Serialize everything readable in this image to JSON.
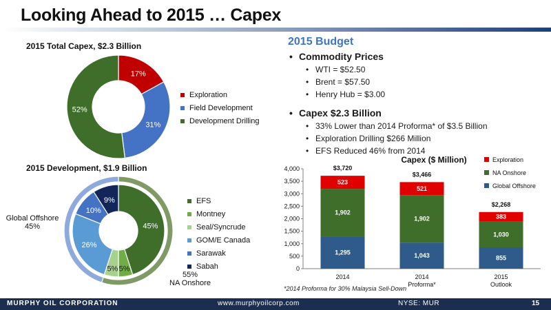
{
  "slide": {
    "title": "Looking Ahead to 2015 … Capex",
    "footer_company": "MURPHY OIL CORPORATION",
    "footer_url": "www.murphyoilcorp.com",
    "footer_ticker": "NYSE: MUR",
    "page_number": "15",
    "footnote": "*2014 Proforma for 30% Malaysia Sell-Down"
  },
  "budget": {
    "heading": "2015 Budget",
    "commodity_label": "Commodity Prices",
    "commodity_items": [
      "WTI = $52.50",
      "Brent = $57.50",
      "Henry Hub = $3.00"
    ],
    "capex_label": "Capex $2.3 Billion",
    "capex_items": [
      "33% Lower than 2014 Proforma* of $3.5 Billion",
      "Exploration Drilling $266 Million",
      "EFS Reduced 46% from 2014"
    ]
  },
  "chart_data": [
    {
      "type": "pie",
      "variant": "donut",
      "title": "2015 Total Capex, $2.3 Billion",
      "categories": [
        "Exploration",
        "Field Development",
        "Development Drilling"
      ],
      "values": [
        17,
        31,
        52
      ],
      "labels": [
        "17%",
        "31%",
        "52%"
      ],
      "colors": [
        "#c00000",
        "#4472c4",
        "#3f6e2b"
      ],
      "legend_position": "right"
    },
    {
      "type": "pie",
      "variant": "donut",
      "title": "2015 Development, $1.9 Billion",
      "categories": [
        "EFS",
        "Montney",
        "Seal/Syncrude",
        "GOM/E Canada",
        "Sarawak",
        "Sabah"
      ],
      "values": [
        45,
        5,
        5,
        26,
        10,
        9
      ],
      "labels": [
        "45%",
        "5%",
        "5%",
        "26%",
        "10%",
        "9%"
      ],
      "colors": [
        "#3f6e2b",
        "#70ad47",
        "#a9d18e",
        "#5b9bd5",
        "#4472c4",
        "#13265a"
      ],
      "outer_ring": {
        "values": [
          55,
          45
        ],
        "colors": [
          "#7f9a65",
          "#8ea9db"
        ],
        "labels": [
          "55%\nNA Onshore",
          "Global Offshore\n45%"
        ]
      },
      "legend_position": "right"
    },
    {
      "type": "bar",
      "stacked": true,
      "title": "Capex ($ Million)",
      "categories": [
        "2014",
        "2014\nProforma*",
        "2015\nOutlook"
      ],
      "series": [
        {
          "name": "Global Offshore",
          "values": [
            1295,
            1043,
            855
          ],
          "color": "#2e5b8a"
        },
        {
          "name": "NA Onshore",
          "values": [
            1902,
            1902,
            1030
          ],
          "color": "#3f6e2b"
        },
        {
          "name": "Exploration",
          "values": [
            523,
            521,
            383
          ],
          "color": "#e00000"
        }
      ],
      "totals": [
        "$3,720",
        "$3,466",
        "$2,268"
      ],
      "ylim": [
        0,
        4000
      ],
      "yticks": [
        "0",
        "500",
        "1,000",
        "1,500",
        "2,000",
        "2,500",
        "3,000",
        "3,500",
        "4,000"
      ],
      "legend_position": "top-right"
    }
  ]
}
